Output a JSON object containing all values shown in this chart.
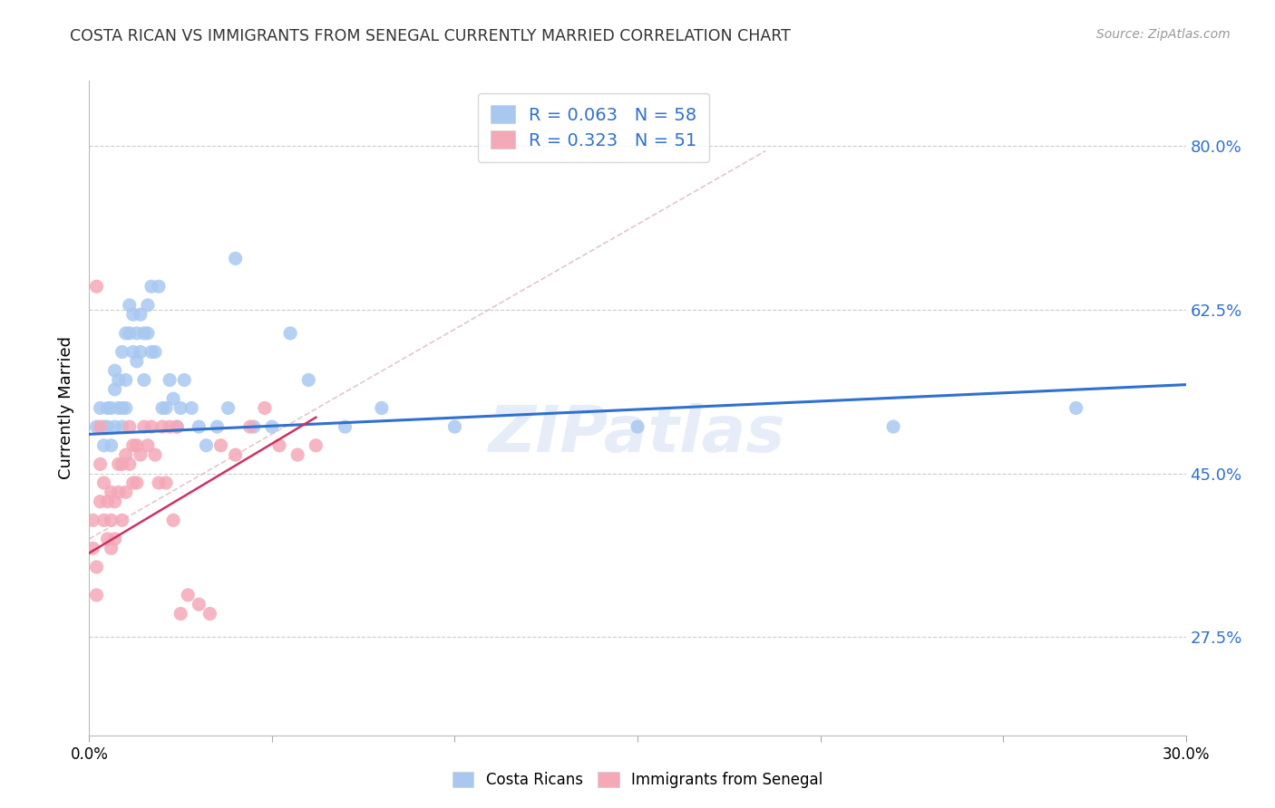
{
  "title": "COSTA RICAN VS IMMIGRANTS FROM SENEGAL CURRENTLY MARRIED CORRELATION CHART",
  "source": "Source: ZipAtlas.com",
  "ylabel": "Currently Married",
  "ytick_positions": [
    0.275,
    0.45,
    0.625,
    0.8
  ],
  "ytick_labels": [
    "27.5%",
    "45.0%",
    "62.5%",
    "80.0%"
  ],
  "xtick_positions": [
    0.0,
    0.05,
    0.1,
    0.15,
    0.2,
    0.25,
    0.3
  ],
  "xtick_labels": [
    "0.0%",
    "",
    "",
    "",
    "",
    "",
    "30.0%"
  ],
  "xlim": [
    0.0,
    0.3
  ],
  "ylim": [
    0.17,
    0.87
  ],
  "legend_R1": "0.063",
  "legend_N1": "58",
  "legend_R2": "0.323",
  "legend_N2": "51",
  "color_blue": "#A8C8F0",
  "color_pink": "#F4A8B8",
  "color_line_blue": "#3070D0",
  "color_line_pink": "#D03060",
  "color_dash": "#E0C0C8",
  "color_grid": "#CCCCCC",
  "color_legend_text": "#3070D0",
  "watermark": "ZIPatlas",
  "costa_rican_x": [
    0.002,
    0.003,
    0.004,
    0.004,
    0.005,
    0.005,
    0.006,
    0.006,
    0.007,
    0.007,
    0.007,
    0.008,
    0.008,
    0.009,
    0.009,
    0.009,
    0.01,
    0.01,
    0.01,
    0.011,
    0.011,
    0.012,
    0.012,
    0.013,
    0.013,
    0.014,
    0.014,
    0.015,
    0.015,
    0.016,
    0.016,
    0.017,
    0.017,
    0.018,
    0.019,
    0.02,
    0.021,
    0.022,
    0.023,
    0.024,
    0.025,
    0.026,
    0.028,
    0.03,
    0.032,
    0.035,
    0.038,
    0.04,
    0.045,
    0.05,
    0.055,
    0.06,
    0.07,
    0.08,
    0.1,
    0.15,
    0.22,
    0.27
  ],
  "costa_rican_y": [
    0.5,
    0.52,
    0.5,
    0.48,
    0.5,
    0.52,
    0.48,
    0.52,
    0.5,
    0.54,
    0.56,
    0.52,
    0.55,
    0.5,
    0.52,
    0.58,
    0.52,
    0.55,
    0.6,
    0.6,
    0.63,
    0.58,
    0.62,
    0.57,
    0.6,
    0.58,
    0.62,
    0.55,
    0.6,
    0.6,
    0.63,
    0.58,
    0.65,
    0.58,
    0.65,
    0.52,
    0.52,
    0.55,
    0.53,
    0.5,
    0.52,
    0.55,
    0.52,
    0.5,
    0.48,
    0.5,
    0.52,
    0.68,
    0.5,
    0.5,
    0.6,
    0.55,
    0.5,
    0.52,
    0.5,
    0.5,
    0.5,
    0.52
  ],
  "senegal_x": [
    0.001,
    0.001,
    0.002,
    0.002,
    0.002,
    0.003,
    0.003,
    0.003,
    0.004,
    0.004,
    0.005,
    0.005,
    0.006,
    0.006,
    0.006,
    0.007,
    0.007,
    0.008,
    0.008,
    0.009,
    0.009,
    0.01,
    0.01,
    0.011,
    0.011,
    0.012,
    0.012,
    0.013,
    0.013,
    0.014,
    0.015,
    0.016,
    0.017,
    0.018,
    0.019,
    0.02,
    0.021,
    0.022,
    0.023,
    0.024,
    0.025,
    0.027,
    0.03,
    0.033,
    0.036,
    0.04,
    0.044,
    0.048,
    0.052,
    0.057,
    0.062
  ],
  "senegal_y": [
    0.37,
    0.4,
    0.32,
    0.35,
    0.65,
    0.42,
    0.46,
    0.5,
    0.4,
    0.44,
    0.38,
    0.42,
    0.37,
    0.4,
    0.43,
    0.38,
    0.42,
    0.46,
    0.43,
    0.4,
    0.46,
    0.43,
    0.47,
    0.46,
    0.5,
    0.44,
    0.48,
    0.44,
    0.48,
    0.47,
    0.5,
    0.48,
    0.5,
    0.47,
    0.44,
    0.5,
    0.44,
    0.5,
    0.4,
    0.5,
    0.3,
    0.32,
    0.31,
    0.3,
    0.48,
    0.47,
    0.5,
    0.52,
    0.48,
    0.47,
    0.48
  ],
  "blue_line_x": [
    0.0,
    0.3
  ],
  "blue_line_y": [
    0.492,
    0.545
  ],
  "pink_line_x": [
    0.0,
    0.062
  ],
  "pink_line_y": [
    0.365,
    0.51
  ],
  "dash_line_x": [
    0.0,
    0.185
  ],
  "dash_line_y": [
    0.38,
    0.795
  ]
}
